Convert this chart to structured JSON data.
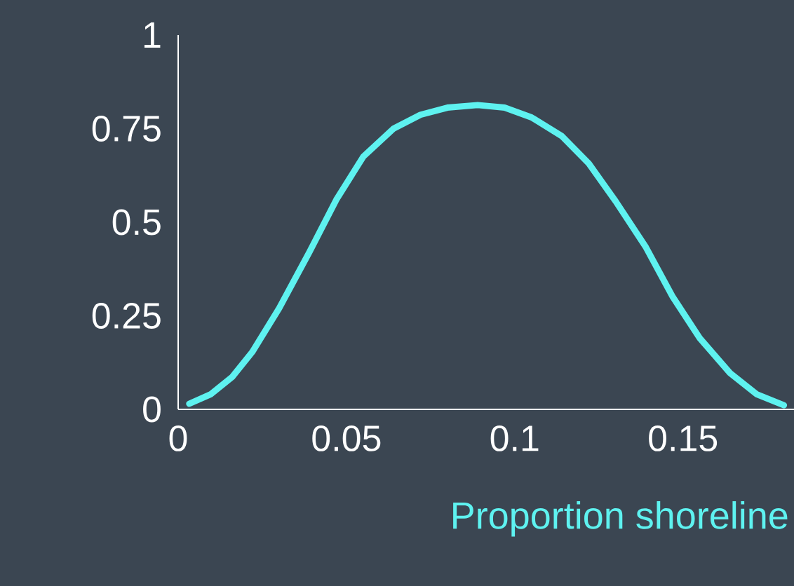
{
  "chart_data": {
    "type": "line",
    "xlabel": "Proportion shoreline",
    "x": [
      0.0033,
      0.0096,
      0.016,
      0.022,
      0.03,
      0.039,
      0.047,
      0.055,
      0.064,
      0.072,
      0.08,
      0.089,
      0.097,
      0.105,
      0.114,
      0.122,
      0.13,
      0.139,
      0.147,
      0.155,
      0.164,
      0.172,
      0.18
    ],
    "series": [
      {
        "color": "#5ef2f0",
        "values": [
          0.015,
          0.04,
          0.086,
          0.153,
          0.27,
          0.42,
          0.56,
          0.675,
          0.75,
          0.787,
          0.806,
          0.813,
          0.806,
          0.78,
          0.73,
          0.657,
          0.556,
          0.433,
          0.3,
          0.19,
          0.097,
          0.04,
          0.011
        ]
      }
    ],
    "xlim": [
      0,
      0.183
    ],
    "ylim": [
      0,
      1
    ],
    "xticks": [
      0,
      0.05,
      0.1,
      0.15
    ],
    "yticks": [
      0,
      0.25,
      0.5,
      0.75,
      1
    ],
    "grid": false,
    "marker": "none",
    "line_style": "solid"
  }
}
